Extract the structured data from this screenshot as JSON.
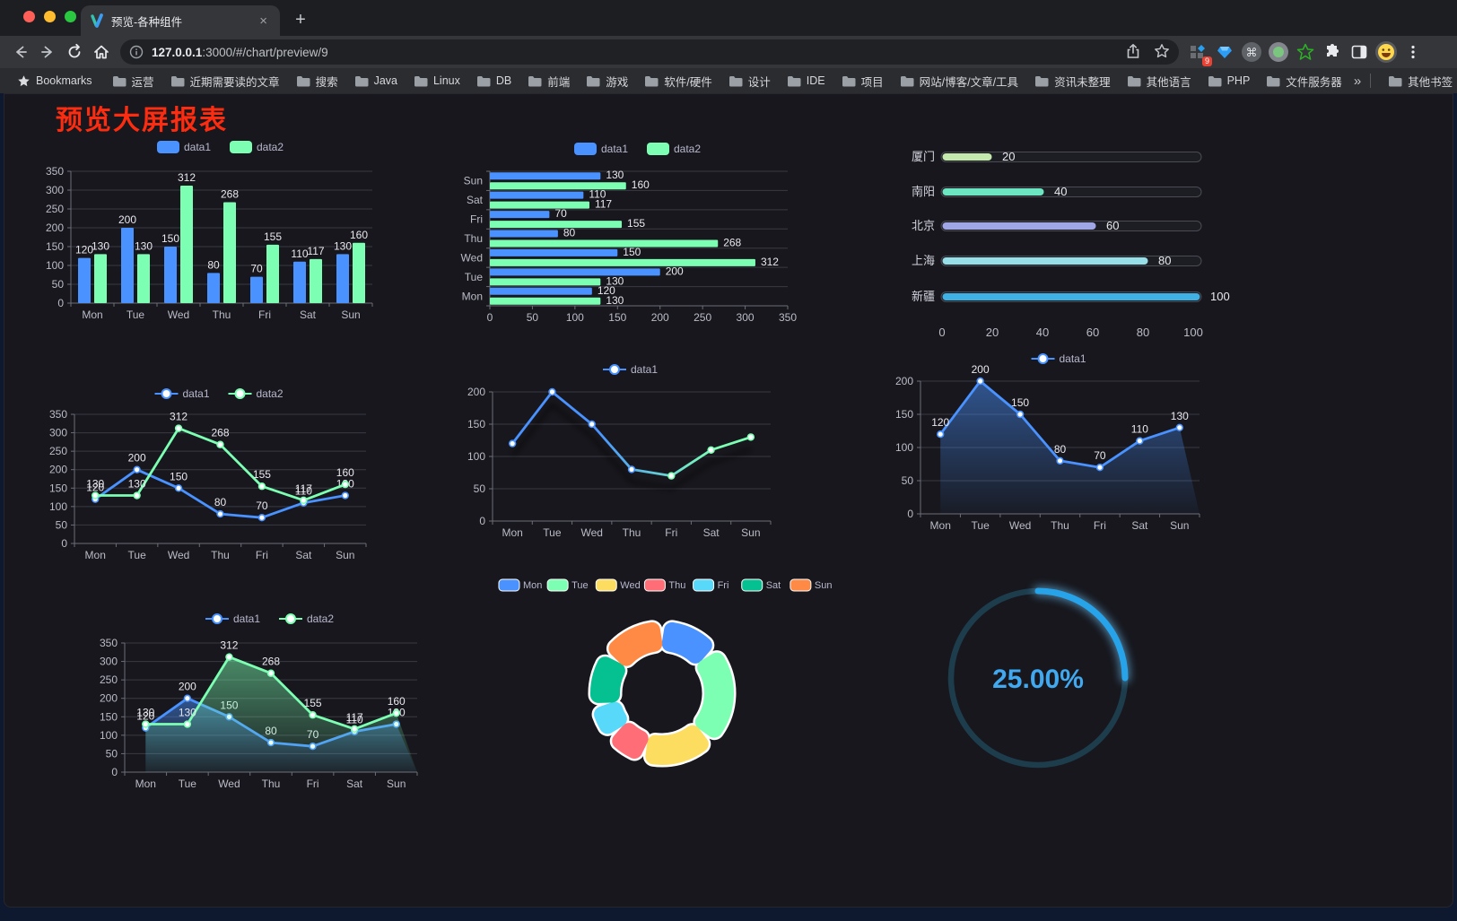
{
  "browser": {
    "tab": {
      "title": "预览-各种组件",
      "close": "×"
    },
    "new_tab": "+",
    "address": {
      "host": "127.0.0.1",
      "path": ":3000/#/chart/preview/9"
    },
    "extension_badge": "9",
    "bookmarks_bar": {
      "root_label": "Bookmarks",
      "folders": [
        "运营",
        "近期需要读的文章",
        "搜索",
        "Java",
        "Linux",
        "DB",
        "前端",
        "游戏",
        "软件/硬件",
        "设计",
        "IDE",
        "项目",
        "网站/博客/文章/工具",
        "资讯未整理",
        "其他语言",
        "PHP",
        "文件服务器"
      ],
      "overflow": "»",
      "other": "其他书签"
    }
  },
  "page": {
    "title": "预览大屏报表",
    "title_color": "#fb2c10"
  },
  "chart_data": [
    {
      "id": "bar-grouped",
      "type": "bar",
      "categories": [
        "Mon",
        "Tue",
        "Wed",
        "Thu",
        "Fri",
        "Sat",
        "Sun"
      ],
      "series": [
        {
          "name": "data1",
          "color": "#4992ff",
          "values": [
            120,
            200,
            150,
            80,
            70,
            110,
            130
          ]
        },
        {
          "name": "data2",
          "color": "#7cffb2",
          "values": [
            130,
            130,
            312,
            268,
            155,
            117,
            160
          ]
        }
      ],
      "ylim": [
        0,
        350
      ],
      "ytick": 50,
      "legend": [
        "data1",
        "data2"
      ],
      "grid": true
    },
    {
      "id": "bar-horizontal",
      "type": "bar-horizontal",
      "categories": [
        "Mon",
        "Tue",
        "Wed",
        "Thu",
        "Fri",
        "Sat",
        "Sun"
      ],
      "series": [
        {
          "name": "data1",
          "color": "#4992ff",
          "values": [
            120,
            200,
            150,
            80,
            70,
            110,
            130
          ]
        },
        {
          "name": "data2",
          "color": "#7cffb2",
          "values": [
            130,
            130,
            312,
            268,
            155,
            117,
            160
          ]
        }
      ],
      "xlim": [
        0,
        350
      ],
      "xtick": 50,
      "legend": [
        "data1",
        "data2"
      ],
      "grid": true
    },
    {
      "id": "progress-bars",
      "type": "progress-bars",
      "max": 100,
      "xticks": [
        0,
        20,
        40,
        60,
        80,
        100
      ],
      "items": [
        {
          "label": "厦门",
          "value": 20,
          "color": "#c4ebad"
        },
        {
          "label": "南阳",
          "value": 40,
          "color": "#6be6c1"
        },
        {
          "label": "北京",
          "value": 60,
          "color": "#a0a7e6"
        },
        {
          "label": "上海",
          "value": 80,
          "color": "#96dee8"
        },
        {
          "label": "新疆",
          "value": 100,
          "color": "#3fb1e3"
        }
      ]
    },
    {
      "id": "line-two",
      "type": "line",
      "categories": [
        "Mon",
        "Tue",
        "Wed",
        "Thu",
        "Fri",
        "Sat",
        "Sun"
      ],
      "series": [
        {
          "name": "data1",
          "color": "#4992ff",
          "values": [
            120,
            200,
            150,
            80,
            70,
            110,
            130
          ]
        },
        {
          "name": "data2",
          "color": "#7cffb2",
          "values": [
            130,
            130,
            312,
            268,
            155,
            117,
            160
          ]
        }
      ],
      "ylim": [
        0,
        350
      ],
      "ytick": 50,
      "legend": [
        "data1",
        "data2"
      ],
      "labels": true,
      "area": false,
      "grid": true
    },
    {
      "id": "line-gradient",
      "type": "line",
      "categories": [
        "Mon",
        "Tue",
        "Wed",
        "Thu",
        "Fri",
        "Sat",
        "Sun"
      ],
      "series": [
        {
          "name": "data1",
          "color": "#4992ff",
          "values": [
            120,
            200,
            150,
            80,
            70,
            110,
            130
          ]
        }
      ],
      "ylim": [
        0,
        200
      ],
      "ytick": 50,
      "legend": [
        "data1"
      ],
      "labels": false,
      "area": false,
      "grid": true,
      "line_gradient": [
        "#4992ff",
        "#7cffb2"
      ],
      "shadow": true
    },
    {
      "id": "line-area",
      "type": "line",
      "categories": [
        "Mon",
        "Tue",
        "Wed",
        "Thu",
        "Fri",
        "Sat",
        "Sun"
      ],
      "series": [
        {
          "name": "data1",
          "color": "#4992ff",
          "values": [
            120,
            200,
            150,
            80,
            70,
            110,
            130
          ],
          "area": true
        }
      ],
      "ylim": [
        0,
        200
      ],
      "ytick": 50,
      "legend": [
        "data1"
      ],
      "labels": true,
      "grid": true
    },
    {
      "id": "line-two-area",
      "type": "line",
      "categories": [
        "Mon",
        "Tue",
        "Wed",
        "Thu",
        "Fri",
        "Sat",
        "Sun"
      ],
      "series": [
        {
          "name": "data1",
          "color": "#4992ff",
          "values": [
            120,
            200,
            150,
            80,
            70,
            110,
            130
          ],
          "area": true
        },
        {
          "name": "data2",
          "color": "#7cffb2",
          "values": [
            130,
            130,
            312,
            268,
            155,
            117,
            160
          ],
          "area": true
        }
      ],
      "ylim": [
        0,
        350
      ],
      "ytick": 50,
      "legend": [
        "data1",
        "data2"
      ],
      "labels": true,
      "grid": true
    },
    {
      "id": "donut",
      "type": "pie",
      "labels": [
        "Mon",
        "Tue",
        "Wed",
        "Thu",
        "Fri",
        "Sat",
        "Sun"
      ],
      "values": [
        120,
        200,
        150,
        80,
        70,
        110,
        130
      ],
      "colors": [
        "#4992ff",
        "#7cffb2",
        "#fddd60",
        "#ff6e76",
        "#58d9f9",
        "#05c091",
        "#ff8a45"
      ],
      "inner_radius": 47,
      "outer_radius": 80,
      "legend_position": "top"
    },
    {
      "id": "gauge",
      "type": "gauge",
      "value": 25,
      "text": "25.00%",
      "color": "#27a3ea",
      "track": "#1d3d4d",
      "text_color": "#41a9f0"
    }
  ]
}
